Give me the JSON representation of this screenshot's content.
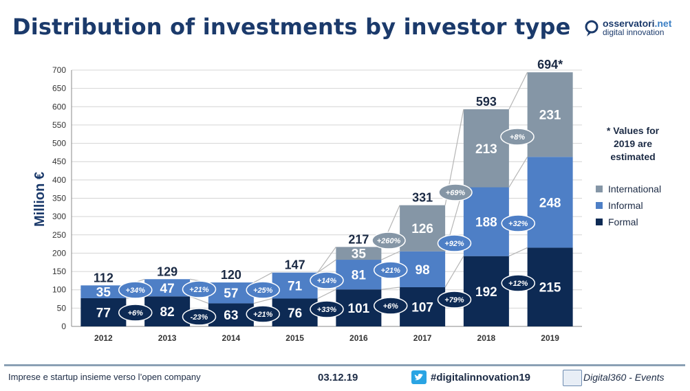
{
  "title": "Distribution of investments by investor type",
  "logo": {
    "line1_main": "osservatori",
    "line1_accent": ".net",
    "line2": "digital innovation"
  },
  "footer": {
    "left": "Imprese e startup insieme verso l’open company",
    "date": "03.12.19",
    "hashtag": "#digitalinnovation19",
    "brand": "Digital360 - Events"
  },
  "colors": {
    "formal": "#0d2a54",
    "informal": "#4e7fc6",
    "international": "#8596a6",
    "title": "#1b3a6b"
  },
  "chart_data": {
    "type": "bar",
    "stacked": true,
    "categories": [
      "2012",
      "2013",
      "2014",
      "2015",
      "2016",
      "2017",
      "2018",
      "2019"
    ],
    "series": [
      {
        "name": "Formal",
        "values": [
          77,
          82,
          63,
          76,
          101,
          107,
          192,
          215
        ]
      },
      {
        "name": "Informal",
        "values": [
          35,
          47,
          57,
          71,
          81,
          98,
          188,
          248
        ]
      },
      {
        "name": "International",
        "values": [
          0,
          0,
          0,
          0,
          35,
          126,
          213,
          231
        ]
      }
    ],
    "totals": [
      "112",
      "129",
      "120",
      "147",
      "217",
      "331",
      "593",
      "694*"
    ],
    "ylabel": "Million €",
    "ylim": [
      0,
      700
    ],
    "yticks": [
      0,
      50,
      100,
      150,
      200,
      250,
      300,
      350,
      400,
      450,
      500,
      550,
      600,
      650,
      700
    ],
    "legend_position": "right",
    "note": "* Values for 2019 are estimated",
    "growth_formal": [
      "+6%",
      "-23%",
      "+21%",
      "+33%",
      "+6%",
      "+79%",
      "+12%"
    ],
    "growth_informal": [
      "+34%",
      "+21%",
      "+25%",
      "+14%",
      "+21%",
      "+92%",
      "+32%"
    ],
    "growth_international": [
      "+260%",
      "+69%",
      "+8%"
    ]
  }
}
